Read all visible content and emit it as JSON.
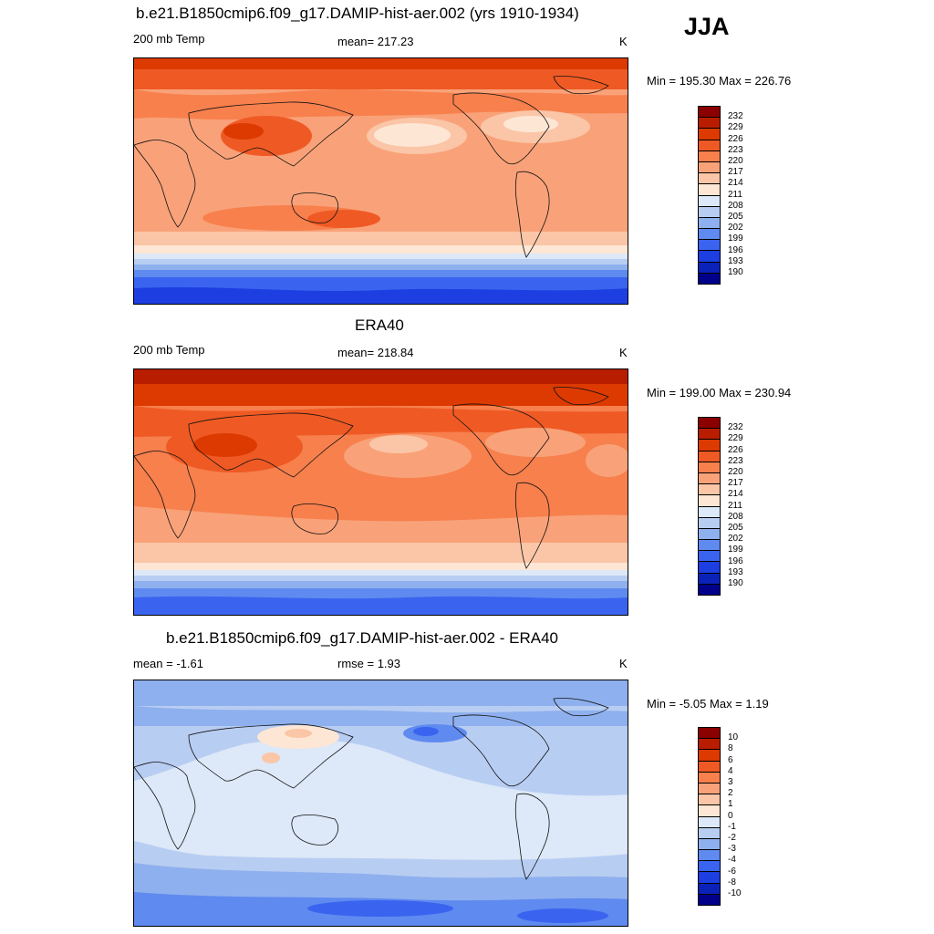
{
  "season": "JJA",
  "panels": [
    {
      "title": "b.e21.B1850cmip6.f09_g17.DAMIP-hist-aer.002 (yrs 1910-1934)",
      "left_label": "200 mb Temp",
      "center_label": "mean= 217.23",
      "units": "K",
      "minmax": "Min = 195.30 Max = 226.76"
    },
    {
      "title": "ERA40",
      "left_label": "200 mb Temp",
      "center_label": "mean= 218.84",
      "units": "K",
      "minmax": "Min = 199.00 Max = 230.94"
    },
    {
      "title": "b.e21.B1850cmip6.f09_g17.DAMIP-hist-aer.002 - ERA40",
      "left_label": "mean =  -1.61",
      "center_label": "rmse =   1.93",
      "units": "K",
      "minmax": "Min =  -5.05 Max =   1.19"
    }
  ],
  "colorbar_abs": {
    "labels": [
      "232",
      "229",
      "226",
      "223",
      "220",
      "217",
      "214",
      "211",
      "208",
      "205",
      "202",
      "199",
      "196",
      "193",
      "190"
    ],
    "colors": [
      "#8b0000",
      "#b81d00",
      "#dc3a00",
      "#ef5a24",
      "#f7804d",
      "#f9a279",
      "#fac6a7",
      "#fde6d4",
      "#dde8f8",
      "#b8cdf2",
      "#8fb0ee",
      "#5f8af0",
      "#3a64ef",
      "#1d3ee0",
      "#0a22b8",
      "#00008b"
    ]
  },
  "colorbar_diff": {
    "labels": [
      "10",
      "8",
      "6",
      "4",
      "3",
      "2",
      "1",
      "0",
      "-1",
      "-2",
      "-3",
      "-4",
      "-6",
      "-8",
      "-10"
    ],
    "colors": [
      "#8b0000",
      "#b81d00",
      "#dc3a00",
      "#ef5a24",
      "#f7804d",
      "#f9a279",
      "#fac6a7",
      "#fde6d4",
      "#dde8f8",
      "#b8cdf2",
      "#8fb0ee",
      "#5f8af0",
      "#3a64ef",
      "#1d3ee0",
      "#0a22b8",
      "#00008b"
    ]
  }
}
